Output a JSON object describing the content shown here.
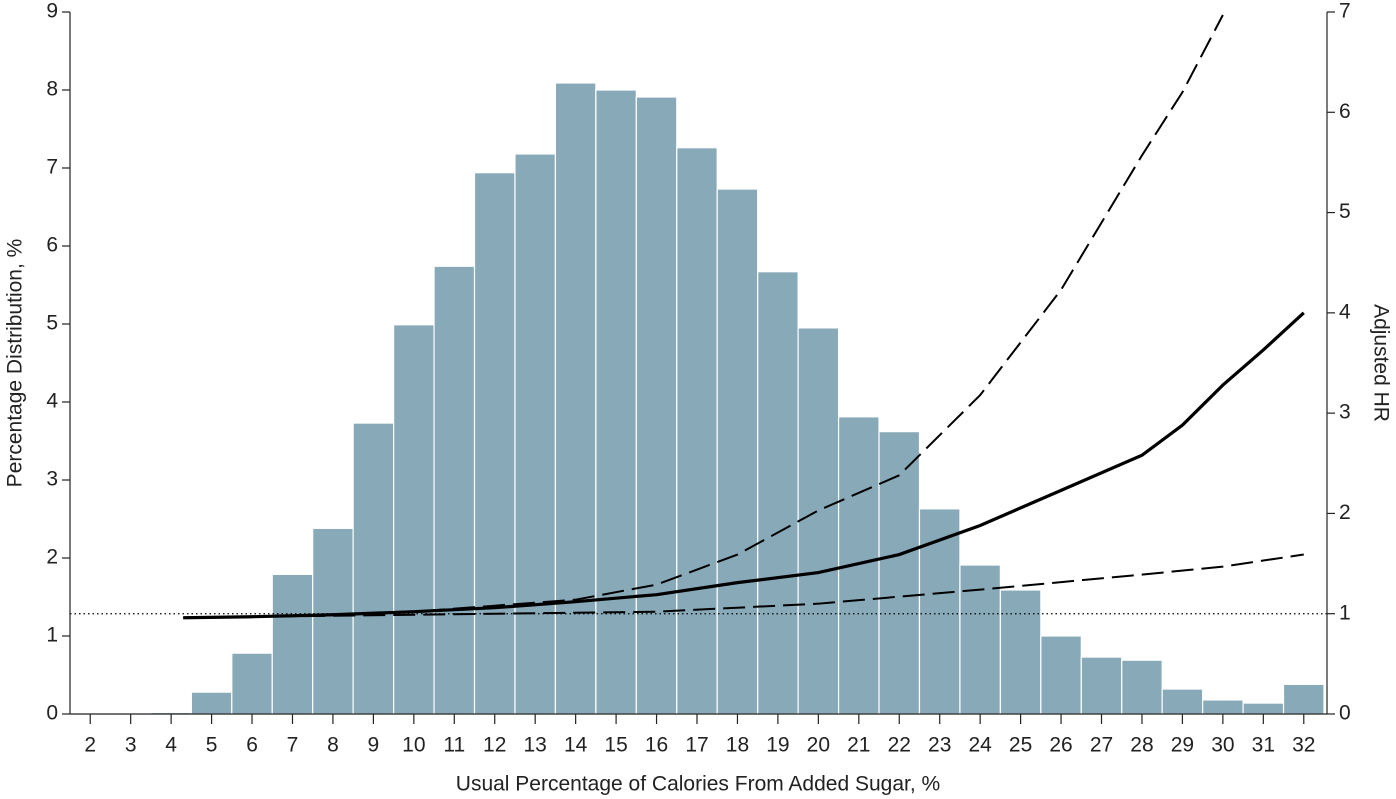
{
  "chart_data": {
    "type": "histogram",
    "x_label": "Usual Percentage of Calories From Added Sugar, %",
    "y_label": "Percentage Distribution, %",
    "y2_label": "Adjusted HR",
    "bins": [
      1.5,
      2.5,
      3.5,
      4.5,
      5.5,
      6.5,
      7.5,
      8.5,
      9.5,
      10.5,
      11.5,
      12.5,
      13.5,
      14.5,
      15.5,
      16.5,
      17.5,
      18.5,
      19.5,
      20.5,
      21.5,
      22.5,
      23.5,
      24.5,
      25.5,
      26.5,
      27.5,
      28.5,
      29.5,
      30.5,
      31.5,
      32.5
    ],
    "values": [
      0,
      0.005,
      0.02,
      0.28,
      0.78,
      1.79,
      2.38,
      3.73,
      4.99,
      5.74,
      6.94,
      7.18,
      8.09,
      8.0,
      7.91,
      7.26,
      6.73,
      5.67,
      4.95,
      3.81,
      3.62,
      2.63,
      1.91,
      1.59,
      1.0,
      0.73,
      0.69,
      0.32,
      0.18,
      0.14,
      0.38
    ],
    "color": "#87a9b8",
    "xlim": [
      1.5,
      32.5
    ],
    "xticks": [
      2,
      3,
      4,
      5,
      6,
      7,
      8,
      9,
      10,
      11,
      12,
      13,
      14,
      15,
      16,
      17,
      18,
      19,
      20,
      21,
      22,
      23,
      24,
      25,
      26,
      27,
      28,
      29,
      30,
      31,
      32
    ],
    "ylim": [
      0,
      9
    ],
    "yticks": [
      0,
      1,
      2,
      3,
      4,
      5,
      6,
      7,
      8,
      9
    ],
    "y2lim": [
      0,
      7
    ],
    "y2ticks": [
      0,
      1,
      2,
      3,
      4,
      5,
      6,
      7
    ],
    "reference_line": 1,
    "series": [
      {
        "axis": "y2",
        "style": "solid",
        "color": "#000000",
        "x": [
          4.3,
          6,
          8,
          10,
          12,
          14,
          16,
          18,
          20,
          22,
          24,
          26,
          28,
          29,
          30,
          31,
          32
        ],
        "values": [
          0.96,
          0.97,
          0.99,
          1.02,
          1.06,
          1.12,
          1.19,
          1.31,
          1.41,
          1.59,
          1.88,
          2.23,
          2.58,
          2.88,
          3.28,
          3.63,
          4.0
        ]
      },
      {
        "axis": "y2",
        "style": "dashed",
        "color": "#000000",
        "x": [
          4.3,
          6,
          8,
          10,
          12,
          14,
          16,
          18,
          20,
          22,
          24,
          26,
          28,
          29,
          30
        ],
        "values": [
          0.96,
          0.97,
          0.99,
          1.02,
          1.08,
          1.14,
          1.29,
          1.59,
          2.03,
          2.38,
          3.18,
          4.23,
          5.57,
          6.2,
          6.97
        ]
      },
      {
        "axis": "y2",
        "style": "dashed",
        "color": "#000000",
        "x": [
          4.3,
          6,
          8,
          12,
          16,
          20,
          24,
          28,
          30,
          32
        ],
        "values": [
          0.96,
          0.97,
          0.98,
          1.0,
          1.02,
          1.1,
          1.24,
          1.39,
          1.47,
          1.59
        ]
      }
    ]
  }
}
